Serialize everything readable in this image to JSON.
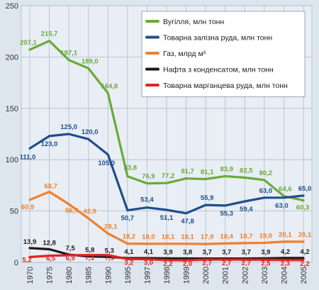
{
  "chart_data": {
    "type": "line",
    "x": [
      "1970",
      "1975",
      "1980",
      "1985",
      "1990",
      "1995",
      "1997",
      "1998",
      "1999",
      "2000",
      "2001",
      "2002",
      "2003",
      "2004",
      "2005"
    ],
    "ylim": [
      0,
      250
    ],
    "yticks": [
      0,
      50,
      100,
      150,
      200,
      250
    ],
    "grid": true,
    "legend_position": "top-right",
    "series": [
      {
        "name": "Вугілля, млн тонн",
        "color": "#6aaa3a",
        "values": [
          207.1,
          215.7,
          197.1,
          189.0,
          164.8,
          83.8,
          76.9,
          77.2,
          81.7,
          81.1,
          83.9,
          82.5,
          80.2,
          64.6,
          60.3
        ],
        "labels": [
          "207,1",
          "215,7",
          "197,1",
          "189,0",
          "164,8",
          "83,8",
          "76,9",
          "77,2",
          "81,7",
          "81,1",
          "83,9",
          "82,5",
          "80,2",
          "64,6",
          "60,3"
        ]
      },
      {
        "name": "Товарна залізна руда, млн тонн",
        "color": "#1f4e8c",
        "values": [
          111.0,
          123.0,
          125.0,
          120.0,
          105.0,
          50.7,
          53.4,
          51.1,
          47.8,
          55.9,
          55.3,
          59.4,
          63.0,
          63.0,
          65.0
        ],
        "labels": [
          "111,0",
          "123,0",
          "125,0",
          "120,0",
          "105,0",
          "50,7",
          "53,4",
          "51,1",
          "47,8",
          "55,9",
          "55,3",
          "59,4",
          "63,0",
          "63,0",
          "65,0"
        ]
      },
      {
        "name": "Газ, млрд м³",
        "color": "#f07f2e",
        "values": [
          60.9,
          68.7,
          56.7,
          42.9,
          28.1,
          18.2,
          18.0,
          18.1,
          18.1,
          17.9,
          18.4,
          18.7,
          19.0,
          20.1,
          20.1
        ],
        "labels": [
          "60,9",
          "68,7",
          "56,7",
          "42,9",
          "28,1",
          "18,2",
          "18,0",
          "18,1",
          "18,1",
          "17,9",
          "18,4",
          "18,7",
          "19,0",
          "20,1",
          "20,1"
        ]
      },
      {
        "name": "Нафта з конденсатом, млн тонн",
        "color": "#1a1a1a",
        "values": [
          13.9,
          12.8,
          7.5,
          5.8,
          5.3,
          4.1,
          4.1,
          3.9,
          3.8,
          3.7,
          3.7,
          3.7,
          3.9,
          4.2,
          4.2
        ],
        "labels": [
          "13,9",
          "12,8",
          "7,5",
          "5,8",
          "5,3",
          "4,1",
          "4,1",
          "3,9",
          "3,8",
          "3,7",
          "3,7",
          "3,7",
          "3,9",
          "4,2",
          "4,2"
        ]
      },
      {
        "name": "Товарна марганцева руда, млн тонн",
        "color": "#e42320",
        "values": [
          5.2,
          6.5,
          6.9,
          7.1,
          7.1,
          3.2,
          3.0,
          2.2,
          2.0,
          2.7,
          2.7,
          2.7,
          2.5,
          2.3,
          2.2
        ],
        "labels": [
          "5,2",
          "6,5",
          "6,9",
          "7,1",
          "7,1",
          "3,2",
          "3,0",
          "2,2",
          "2,0",
          "2,7",
          "2,7",
          "2,7",
          "2,5",
          "2,3",
          "2,2"
        ]
      }
    ]
  }
}
